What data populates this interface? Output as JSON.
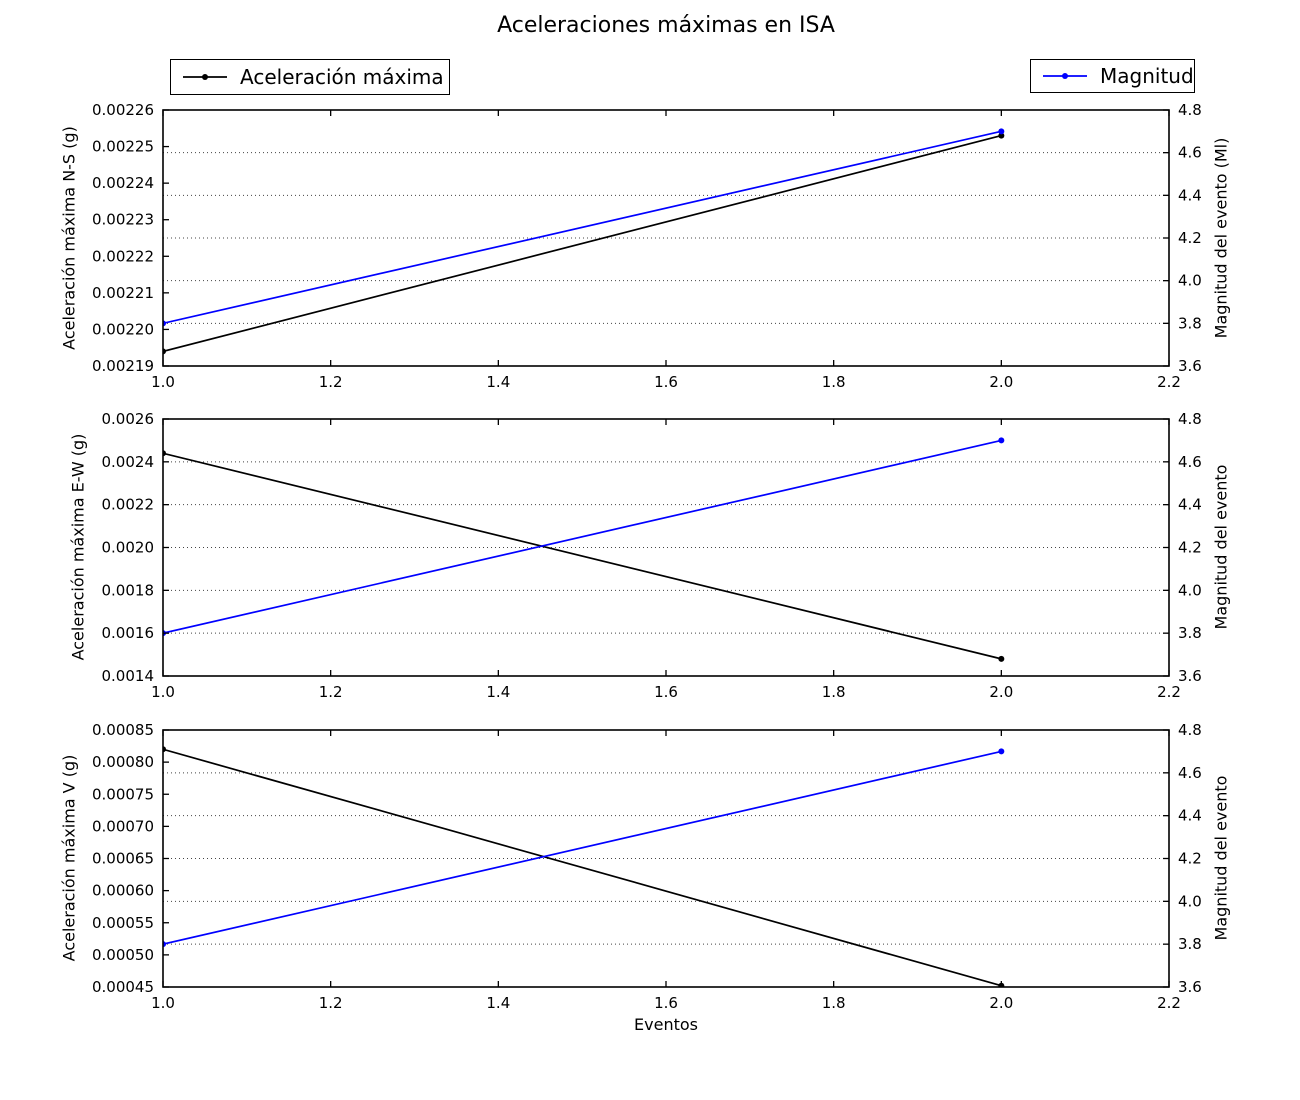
{
  "title": "Aceleraciones máximas en ISA",
  "xlabel": "Eventos",
  "colors": {
    "acceleration": "#000000",
    "magnitude": "#0000ff",
    "grid": "#444444",
    "axis": "#000000"
  },
  "legend_left": {
    "label": "Aceleración máxima",
    "color": "#000000"
  },
  "legend_right": {
    "label": "Magnitud",
    "color": "#0000ff"
  },
  "chart_data": [
    {
      "type": "line",
      "ylabel": "Aceleración máxima N-S (g)",
      "ylabel_right": "Magnitud del evento (Ml)",
      "x": [
        1.0,
        2.0
      ],
      "series": [
        {
          "name": "Aceleración máxima",
          "axis": "left",
          "color": "#000000",
          "values": [
            0.002194,
            0.002253
          ]
        },
        {
          "name": "Magnitud",
          "axis": "right",
          "color": "#0000ff",
          "values": [
            3.8,
            4.7
          ]
        }
      ],
      "xlim": [
        1.0,
        2.2
      ],
      "xtick_labels": [
        "1.0",
        "1.2",
        "1.4",
        "1.6",
        "1.8",
        "2.0",
        "2.2"
      ],
      "ylim": [
        0.00219,
        0.00226
      ],
      "ytick_labels": [
        "0.00219",
        "0.00220",
        "0.00221",
        "0.00222",
        "0.00223",
        "0.00224",
        "0.00225",
        "0.00226"
      ],
      "ylim_right": [
        3.6,
        4.8
      ],
      "ytick_labels_right": [
        "3.6",
        "3.8",
        "4.0",
        "4.2",
        "4.4",
        "4.6",
        "4.8"
      ],
      "grid": true
    },
    {
      "type": "line",
      "ylabel": "Aceleración máxima E-W (g)",
      "ylabel_right": "Magnitud del evento",
      "x": [
        1.0,
        2.0
      ],
      "series": [
        {
          "name": "Aceleración máxima",
          "axis": "left",
          "color": "#000000",
          "values": [
            0.00244,
            0.00148
          ]
        },
        {
          "name": "Magnitud",
          "axis": "right",
          "color": "#0000ff",
          "values": [
            3.8,
            4.7
          ]
        }
      ],
      "xlim": [
        1.0,
        2.2
      ],
      "xtick_labels": [
        "1.0",
        "1.2",
        "1.4",
        "1.6",
        "1.8",
        "2.0",
        "2.2"
      ],
      "ylim": [
        0.0014,
        0.0026
      ],
      "ytick_labels": [
        "0.0014",
        "0.0016",
        "0.0018",
        "0.0020",
        "0.0022",
        "0.0024",
        "0.0026"
      ],
      "ylim_right": [
        3.6,
        4.8
      ],
      "ytick_labels_right": [
        "3.6",
        "3.8",
        "4.0",
        "4.2",
        "4.4",
        "4.6",
        "4.8"
      ],
      "grid": true
    },
    {
      "type": "line",
      "ylabel": "Aceleración máxima V (g)",
      "ylabel_right": "Magnitud del evento",
      "x": [
        1.0,
        2.0
      ],
      "series": [
        {
          "name": "Aceleración máxima",
          "axis": "left",
          "color": "#000000",
          "values": [
            0.00082,
            0.000452
          ]
        },
        {
          "name": "Magnitud",
          "axis": "right",
          "color": "#0000ff",
          "values": [
            3.8,
            4.7
          ]
        }
      ],
      "xlim": [
        1.0,
        2.2
      ],
      "xtick_labels": [
        "1.0",
        "1.2",
        "1.4",
        "1.6",
        "1.8",
        "2.0",
        "2.2"
      ],
      "ylim": [
        0.00045,
        0.00085
      ],
      "ytick_labels": [
        "0.00045",
        "0.00050",
        "0.00055",
        "0.00060",
        "0.00065",
        "0.00070",
        "0.00075",
        "0.00080",
        "0.00085"
      ],
      "ylim_right": [
        3.6,
        4.8
      ],
      "ytick_labels_right": [
        "3.6",
        "3.8",
        "4.0",
        "4.2",
        "4.4",
        "4.6",
        "4.8"
      ],
      "grid": true
    }
  ]
}
